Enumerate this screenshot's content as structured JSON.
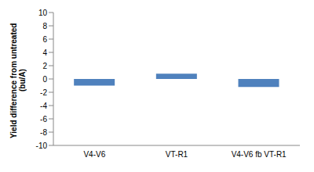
{
  "chart_data": {
    "type": "bar",
    "y_label": "Yield difference from untreated (bu/A)",
    "categories": [
      "V4-V6",
      "VT-R1",
      "V4-V6 fb VT-R1"
    ],
    "values": [
      -1.0,
      0.8,
      -1.2
    ],
    "color": "#4f81bd",
    "ylim": [
      -10,
      10
    ],
    "yticks": [
      -10,
      -8,
      -6,
      -4,
      -2,
      0,
      2,
      4,
      6,
      8,
      10
    ],
    "grid": false
  }
}
